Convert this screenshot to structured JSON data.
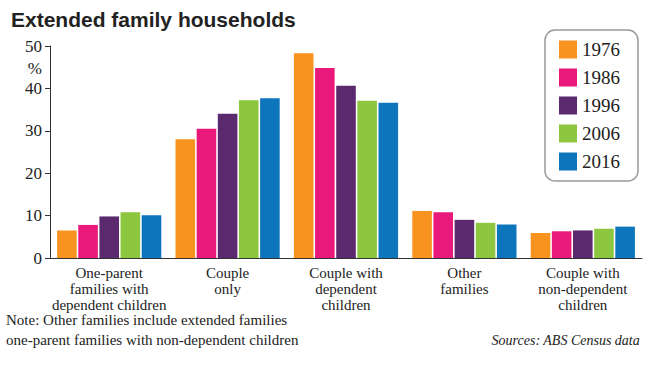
{
  "chart_data": {
    "type": "bar",
    "title": "Extended family households",
    "ylabel": "%",
    "categories": [
      "One-parent\nfamilies with\ndependent children",
      "Couple\nonly",
      "Couple with\ndependent\nchildren",
      "Other\nfamilies",
      "Couple with\nnon-dependent\nchildren"
    ],
    "series": [
      {
        "name": "1976",
        "color": "#f7931e",
        "values": [
          6.5,
          28.0,
          48.3,
          11.1,
          5.9
        ]
      },
      {
        "name": "1986",
        "color": "#e8197a",
        "values": [
          7.8,
          30.5,
          44.8,
          10.8,
          6.3
        ]
      },
      {
        "name": "1996",
        "color": "#5b2a6e",
        "values": [
          9.8,
          34.0,
          40.6,
          9.0,
          6.5
        ]
      },
      {
        "name": "2006",
        "color": "#8dc63f",
        "values": [
          10.8,
          37.2,
          37.1,
          8.3,
          6.9
        ]
      },
      {
        "name": "2016",
        "color": "#0d75bc",
        "values": [
          10.1,
          37.7,
          36.6,
          7.9,
          7.4
        ]
      }
    ],
    "ylim": [
      0,
      50
    ],
    "yticks": [
      0,
      10,
      20,
      30,
      40,
      50
    ],
    "grid": false,
    "legend": "top-right",
    "note": "Note: Other families include extended families\none-parent families with non-dependent children",
    "source": "Sources: ABS Census data"
  }
}
